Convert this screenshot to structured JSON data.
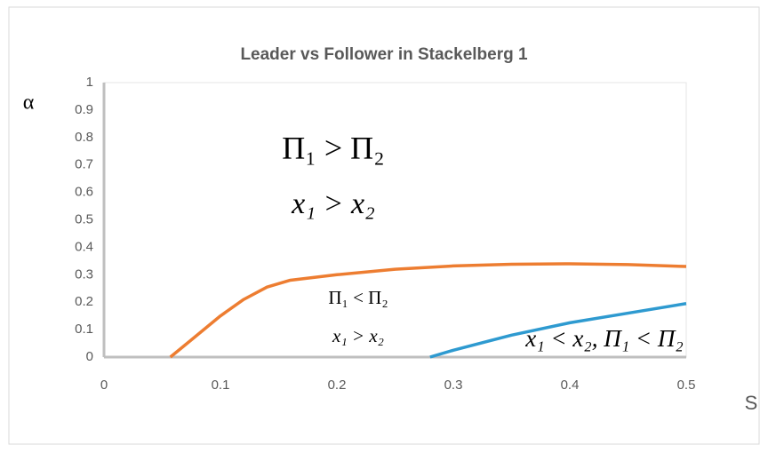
{
  "chart_data": {
    "type": "line",
    "title": "Leader vs Follower in Stackelberg 1",
    "x_label": "S",
    "y_label": "α",
    "xlim": [
      0,
      0.5
    ],
    "xticks": [
      0,
      0.1,
      0.2,
      0.3,
      0.4,
      0.5
    ],
    "ylim": [
      0,
      1
    ],
    "yticks": [
      0,
      0.1,
      0.2,
      0.3,
      0.4,
      0.5,
      0.6,
      0.7,
      0.8,
      0.9,
      1
    ],
    "grid": false,
    "series": [
      {
        "color": "#ed7d31",
        "x": [
          0.057,
          0.08,
          0.1,
          0.12,
          0.14,
          0.16,
          0.2,
          0.25,
          0.3,
          0.35,
          0.4,
          0.45,
          0.5
        ],
        "values": [
          0,
          0.08,
          0.15,
          0.21,
          0.255,
          0.28,
          0.3,
          0.32,
          0.332,
          0.338,
          0.34,
          0.337,
          0.33
        ]
      },
      {
        "color": "#2e9ad0",
        "x": [
          0.28,
          0.3,
          0.35,
          0.4,
          0.45,
          0.5
        ],
        "values": [
          0,
          0.025,
          0.08,
          0.125,
          0.16,
          0.195
        ]
      }
    ],
    "annotations": [
      "Π₁ > Π₂",
      "x₁ > x₂",
      "Π₁ < Π₂",
      "x₁ > x₂",
      "x₁ < x₂, Π₁ < Π₂"
    ]
  }
}
